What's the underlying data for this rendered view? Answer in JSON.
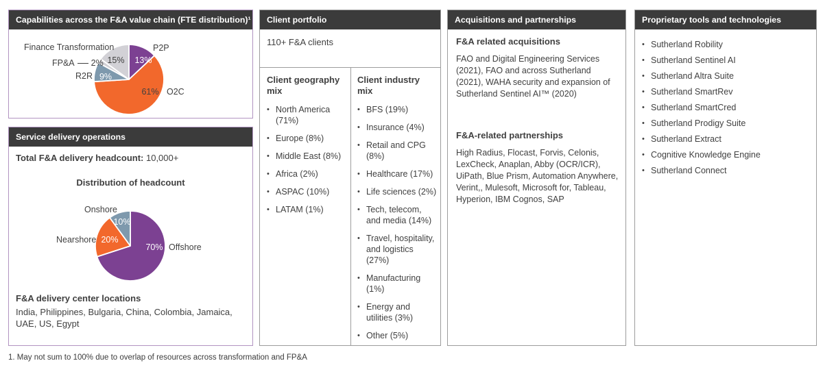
{
  "colors": {
    "header_bg": "#3b3b3b",
    "purple": "#7c4192",
    "orange": "#f2682c",
    "bluegray": "#7e99ad",
    "lightgray": "#d2d1d6",
    "text": "#404040"
  },
  "panels": {
    "capabilities": {
      "title": "Capabilities across the F&A value chain (FTE distribution)¹"
    },
    "service_delivery": {
      "title": "Service delivery operations",
      "headcount_label": "Total F&A delivery headcount:",
      "headcount_value": "10,000+",
      "chart_title": "Distribution of headcount",
      "locations_title": "F&A delivery center locations",
      "locations_text": "India, Philippines, Bulgaria, China, Colombia, Jamaica, UAE, US, Egypt"
    },
    "client_portfolio": {
      "title": "Client portfolio",
      "summary": "110+ F&A clients",
      "geography": {
        "title": "Client geography mix",
        "items": [
          "North America (71%)",
          "Europe (8%)",
          "Middle East (8%)",
          "Africa (2%)",
          "ASPAC (10%)",
          "LATAM (1%)"
        ]
      },
      "industry": {
        "title": "Client industry mix",
        "items": [
          "BFS (19%)",
          "Insurance (4%)",
          "Retail and CPG (8%)",
          "Healthcare (17%)",
          "Life sciences (2%)",
          "Tech, telecom, and media (14%)",
          "Travel, hospitality, and logistics (27%)",
          "Manufacturing (1%)",
          "Energy and utilities (3%)",
          "Other (5%)"
        ]
      }
    },
    "acquisitions": {
      "title": "Acquisitions and partnerships",
      "acquisitions_heading": "F&A related acquisitions",
      "acquisitions_text": "FAO and Digital Engineering Services (2021), FAO and across Sutherland (2021), WAHA security and expansion of Sutherland Sentinel AI™ (2020)",
      "partnerships_heading": "F&A-related partnerships",
      "partnerships_text": "High Radius, Flocast, Forvis, Celonis, LexCheck, Anaplan, Abby (OCR/ICR), UiPath, Blue Prism, Automation Anywhere, Verint,, Mulesoft, Microsoft for, Tableau, Hyperion, IBM Cognos, SAP"
    },
    "tools": {
      "title": "Proprietary tools and technologies",
      "items": [
        "Sutherland Robility",
        "Sutherland Sentinel AI",
        "Sutherland Altra Suite",
        "Sutherland SmartRev",
        "Sutherland SmartCred",
        "Sutherland Prodigy Suite",
        "Sutherland Extract",
        "Cognitive Knowledge Engine",
        "Sutherland Connect"
      ]
    }
  },
  "footnote": "1. May not sum to 100% due to overlap of resources across transformation and FP&A",
  "chart_data": [
    {
      "type": "pie",
      "title": "Capabilities across the F&A value chain (FTE distribution)",
      "start_angle_deg": 0,
      "direction": "clockwise",
      "slices": [
        {
          "label": "P2P",
          "value": 13,
          "pct": "13%",
          "color": "#7c4192"
        },
        {
          "label": "O2C",
          "value": 61,
          "pct": "61%",
          "color": "#f2682c"
        },
        {
          "label": "R2R",
          "value": 9,
          "pct": "9%",
          "color": "#7e99ad"
        },
        {
          "label": "FP&A",
          "value": 2,
          "pct": "2%",
          "color": "#d2d1d6"
        },
        {
          "label": "Finance Transformation",
          "value": 15,
          "pct": "15%",
          "color": "#d2d1d6"
        }
      ]
    },
    {
      "type": "pie",
      "title": "Distribution of headcount",
      "start_angle_deg": 0,
      "direction": "clockwise",
      "slices": [
        {
          "label": "Offshore",
          "value": 70,
          "pct": "70%",
          "color": "#7c4192"
        },
        {
          "label": "Nearshore",
          "value": 20,
          "pct": "20%",
          "color": "#f2682c"
        },
        {
          "label": "Onshore",
          "value": 10,
          "pct": "10%",
          "color": "#7e99ad"
        }
      ]
    }
  ]
}
